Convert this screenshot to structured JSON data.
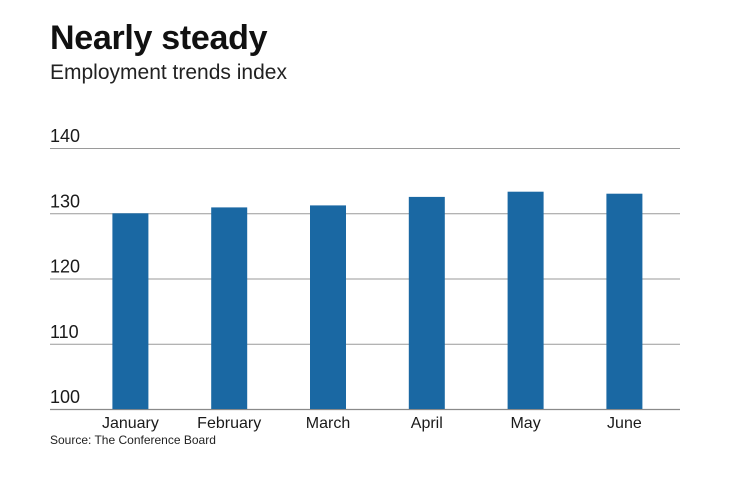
{
  "title": "Nearly steady",
  "subtitle": "Employment trends index",
  "source": "Source: The Conference Board",
  "colors": {
    "bar": "#1a68a3",
    "gridline": "#9a9a9a",
    "baseline": "#8a8a8a"
  },
  "chart_data": {
    "type": "bar",
    "title": "Nearly steady",
    "subtitle": "Employment trends index",
    "categories": [
      "January",
      "February",
      "March",
      "April",
      "May",
      "June"
    ],
    "values": [
      130.0,
      130.9,
      131.2,
      132.5,
      133.3,
      133.0
    ],
    "yticks": [
      "100",
      "110",
      "120",
      "130",
      "140"
    ],
    "ylim": [
      100,
      140
    ],
    "grid": true,
    "legend": "none"
  }
}
